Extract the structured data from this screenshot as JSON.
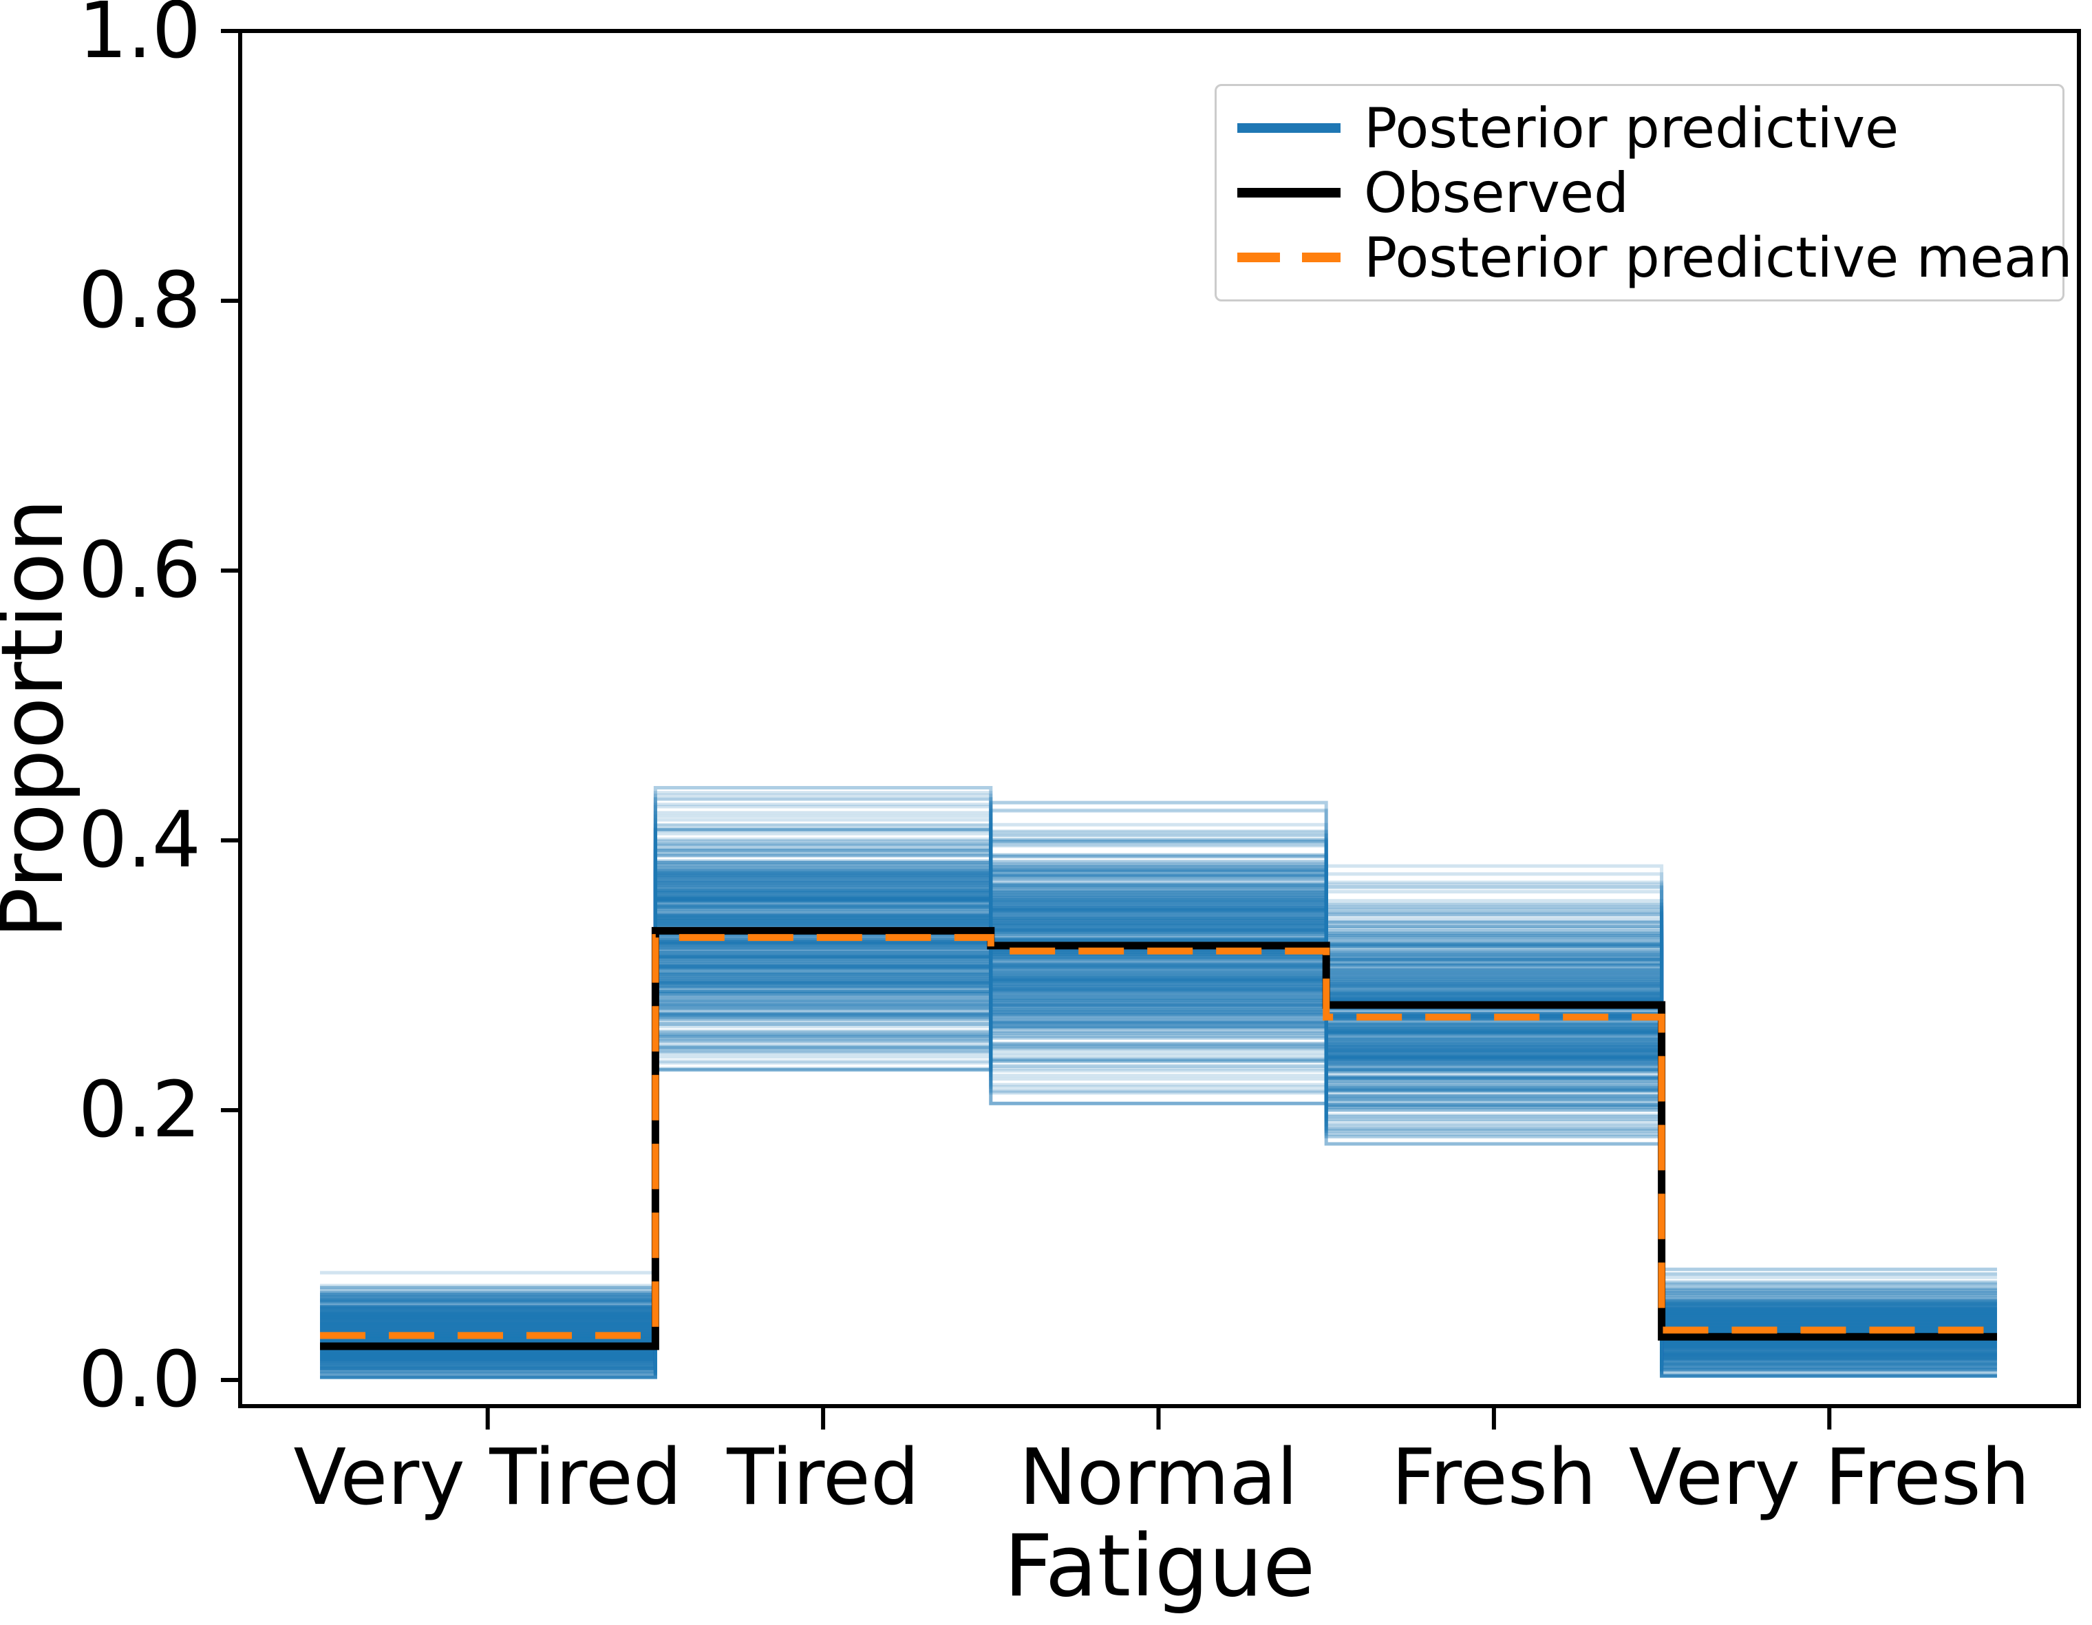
{
  "chart_data": {
    "type": "step-line posterior predictive check",
    "categories": [
      "Very Tired",
      "Tired",
      "Normal",
      "Fresh",
      "Very Fresh"
    ],
    "xlabel": "Fatigue",
    "ylabel": "Proportion",
    "yticks": [
      0.0,
      0.2,
      0.4,
      0.6,
      0.8,
      1.0
    ],
    "ylim": [
      -0.02,
      1.0
    ],
    "grid": false,
    "series": [
      {
        "name": "Posterior predictive",
        "type": "sample-band",
        "color": "#1f77b4",
        "low": [
          0.002,
          0.23,
          0.205,
          0.175,
          0.003
        ],
        "high": [
          0.08,
          0.439,
          0.428,
          0.381,
          0.082
        ]
      },
      {
        "name": "Observed",
        "type": "step",
        "color": "#000000",
        "linestyle": "solid",
        "values": [
          0.025,
          0.333,
          0.322,
          0.278,
          0.032
        ]
      },
      {
        "name": "Posterior predictive mean",
        "type": "step",
        "color": "#ff7f0e",
        "linestyle": "dashed",
        "values": [
          0.033,
          0.328,
          0.318,
          0.269,
          0.037
        ]
      }
    ],
    "legend": {
      "position": "upper right",
      "entries": [
        "Posterior predictive",
        "Observed",
        "Posterior predictive mean"
      ]
    }
  }
}
